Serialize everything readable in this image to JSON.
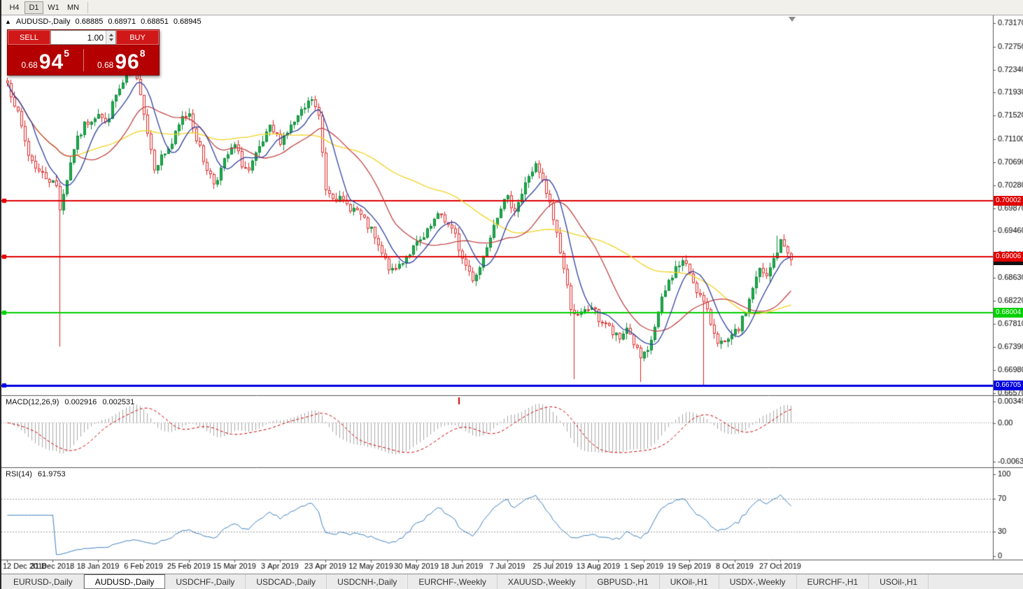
{
  "toolbar": {
    "timeframes": [
      "H4",
      "D1",
      "W1",
      "MN"
    ],
    "active_timeframe": "D1"
  },
  "symbol_header": {
    "marker": "▲",
    "symbol": "AUDUSD-,Daily",
    "open": "0.68885",
    "high": "0.68971",
    "low": "0.68851",
    "close": "0.68945"
  },
  "trade_panel": {
    "sell_label": "SELL",
    "buy_label": "BUY",
    "volume": "1.00",
    "sell_price": {
      "prefix": "0.68",
      "big": "94",
      "sup": "5"
    },
    "buy_price": {
      "prefix": "0.68",
      "big": "96",
      "sup": "8"
    }
  },
  "indicators": {
    "macd": {
      "name": "MACD(12,26,9)",
      "value_main": "0.002916",
      "value_signal": "0.002531"
    },
    "rsi": {
      "name": "RSI(14)",
      "value": "61.9753"
    }
  },
  "bottom_tabs": {
    "items": [
      "EURUSD-,Daily",
      "AUDUSD-,Daily",
      "USDCHF-,Daily",
      "USDCAD-,Daily",
      "USDCNH-,Daily",
      "EURCHF-,Weekly",
      "XAUUSD-,Weekly",
      "GBPUSD-,H1",
      "UKOil-,H1",
      "USDX-,Weekly",
      "EURCHF-,H1",
      "USOil-,H1"
    ],
    "active": "AUDUSD-,Daily"
  },
  "chart_data": {
    "type": "candlestick",
    "symbol": "AUDUSD",
    "timeframe": "Daily",
    "y_ticks": [
      "0.73170",
      "0.72750",
      "0.72340",
      "0.71930",
      "0.71520",
      "0.71100",
      "0.70690",
      "0.70280",
      "0.69870",
      "0.69460",
      "0.69040",
      "0.68630",
      "0.68220",
      "0.67810",
      "0.67390",
      "0.66980",
      "0.66570"
    ],
    "x_labels": [
      "12 Dec 2018",
      "31 Dec 2018",
      "18 Jan 2019",
      "6 Feb 2019",
      "25 Feb 2019",
      "15 Mar 2019",
      "3 Apr 2019",
      "23 Apr 2019",
      "12 May 2019",
      "30 May 2019",
      "18 Jun 2019",
      "7 Jul 2019",
      "25 Jul 2019",
      "13 Aug 2019",
      "1 Sep 2019",
      "19 Sep 2019",
      "8 Oct 2019",
      "27 Oct 2019"
    ],
    "candles_per_label": 13,
    "count": 225,
    "last_close": 0.68945,
    "seed": 7,
    "noise": 0.0016,
    "wick": 0.0011,
    "anchors": [
      [
        0,
        0.721
      ],
      [
        2,
        0.7175
      ],
      [
        4,
        0.713
      ],
      [
        6,
        0.7082
      ],
      [
        9,
        0.7052
      ],
      [
        12,
        0.7038
      ],
      [
        14,
        0.7026
      ],
      [
        15,
        0.6988
      ],
      [
        17,
        0.704
      ],
      [
        19,
        0.7095
      ],
      [
        22,
        0.7135
      ],
      [
        26,
        0.7158
      ],
      [
        28,
        0.7136
      ],
      [
        31,
        0.7188
      ],
      [
        34,
        0.7218
      ],
      [
        36,
        0.7228
      ],
      [
        38,
        0.7196
      ],
      [
        40,
        0.7122
      ],
      [
        42,
        0.7062
      ],
      [
        44,
        0.7078
      ],
      [
        47,
        0.7102
      ],
      [
        50,
        0.7148
      ],
      [
        52,
        0.7158
      ],
      [
        54,
        0.7112
      ],
      [
        56,
        0.7072
      ],
      [
        59,
        0.7032
      ],
      [
        61,
        0.7056
      ],
      [
        63,
        0.7082
      ],
      [
        65,
        0.7098
      ],
      [
        67,
        0.7066
      ],
      [
        69,
        0.7052
      ],
      [
        72,
        0.7092
      ],
      [
        75,
        0.7128
      ],
      [
        78,
        0.7108
      ],
      [
        81,
        0.7132
      ],
      [
        84,
        0.7156
      ],
      [
        87,
        0.7182
      ],
      [
        89,
        0.7148
      ],
      [
        91,
        0.7022
      ],
      [
        94,
        0.7006
      ],
      [
        97,
        0.6992
      ],
      [
        100,
        0.6982
      ],
      [
        102,
        0.6962
      ],
      [
        104,
        0.6946
      ],
      [
        106,
        0.6916
      ],
      [
        108,
        0.6892
      ],
      [
        110,
        0.6872
      ],
      [
        112,
        0.6886
      ],
      [
        114,
        0.6902
      ],
      [
        117,
        0.6922
      ],
      [
        119,
        0.6932
      ],
      [
        122,
        0.6964
      ],
      [
        124,
        0.6976
      ],
      [
        126,
        0.6956
      ],
      [
        128,
        0.6936
      ],
      [
        130,
        0.6896
      ],
      [
        133,
        0.6862
      ],
      [
        135,
        0.6882
      ],
      [
        137,
        0.6922
      ],
      [
        139,
        0.6962
      ],
      [
        141,
        0.6992
      ],
      [
        143,
        0.7002
      ],
      [
        145,
        0.6986
      ],
      [
        147,
        0.7012
      ],
      [
        149,
        0.7046
      ],
      [
        151,
        0.7062
      ],
      [
        153,
        0.7032
      ],
      [
        155,
        0.6992
      ],
      [
        157,
        0.6942
      ],
      [
        159,
        0.6878
      ],
      [
        161,
        0.6812
      ],
      [
        163,
        0.6792
      ],
      [
        165,
        0.6802
      ],
      [
        167,
        0.6812
      ],
      [
        169,
        0.6788
      ],
      [
        171,
        0.6782
      ],
      [
        173,
        0.6762
      ],
      [
        175,
        0.6752
      ],
      [
        177,
        0.6776
      ],
      [
        179,
        0.6746
      ],
      [
        181,
        0.6718
      ],
      [
        183,
        0.6728
      ],
      [
        185,
        0.6776
      ],
      [
        187,
        0.6822
      ],
      [
        189,
        0.6856
      ],
      [
        191,
        0.688
      ],
      [
        193,
        0.6892
      ],
      [
        195,
        0.6872
      ],
      [
        197,
        0.6842
      ],
      [
        199,
        0.6816
      ],
      [
        201,
        0.6782
      ],
      [
        203,
        0.6752
      ],
      [
        205,
        0.6742
      ],
      [
        207,
        0.6756
      ],
      [
        209,
        0.6772
      ],
      [
        211,
        0.6802
      ],
      [
        213,
        0.6846
      ],
      [
        215,
        0.6876
      ],
      [
        217,
        0.6862
      ],
      [
        219,
        0.6896
      ],
      [
        221,
        0.6926
      ],
      [
        223,
        0.6912
      ],
      [
        224,
        0.68945
      ]
    ],
    "wick_events": [
      {
        "i": 15,
        "low": 0.674
      },
      {
        "i": 162,
        "low": 0.6682
      },
      {
        "i": 181,
        "low": 0.6677
      },
      {
        "i": 199,
        "low": 0.6671
      },
      {
        "i": 220,
        "high": 0.6938
      }
    ],
    "h_lines": [
      {
        "label": "0.70002",
        "value": 0.70002,
        "color": "#e00000",
        "width": 2,
        "handle": true
      },
      {
        "label": "0.69006",
        "value": 0.69006,
        "color": "#e00000",
        "width": 2,
        "handle": true
      },
      {
        "label": "0.68004",
        "value": 0.68004,
        "color": "#00d000",
        "width": 2,
        "handle": true
      },
      {
        "label": "0.66705",
        "value": 0.66705,
        "color": "#0000e0",
        "width": 3,
        "handle": true
      }
    ],
    "current_price": {
      "label": "0.68945",
      "value": 0.68945,
      "color": "#111111"
    },
    "ma_lines": [
      {
        "period": 55,
        "color": "#f2d321"
      },
      {
        "period": 21,
        "color": "#c24444"
      },
      {
        "period": 8,
        "color": "#2e3f9f"
      }
    ],
    "candle_colors": {
      "up": "#1fae4d",
      "up_border": "#0c8a39",
      "down": "#dd2222",
      "down_fill": "#ffffff"
    },
    "macd": {
      "params": [
        12,
        26,
        9
      ],
      "axis": [
        "0.00349",
        "0.00",
        "-0.00637"
      ],
      "bar_color": "#a8a8a8",
      "signal_color": "#cc0000"
    },
    "event_marker": {
      "index": 129,
      "color": "#cc0000"
    },
    "rsi": {
      "period": 14,
      "axis": [
        "100",
        "70",
        "30",
        "0"
      ],
      "levels": [
        70,
        30
      ],
      "line_color": "#3e7fc1"
    }
  }
}
